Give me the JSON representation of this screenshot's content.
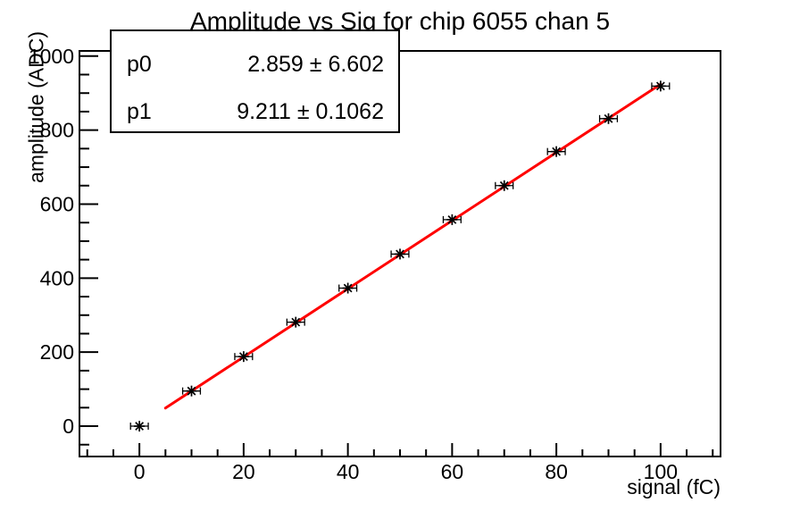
{
  "chart_data": {
    "type": "scatter",
    "title": "Amplitude vs Sig for chip 6055 chan 5",
    "xlabel": "signal (fC)",
    "ylabel": "amplitude (ADC)",
    "x": [
      0,
      10,
      20,
      30,
      40,
      50,
      60,
      70,
      80,
      90,
      100
    ],
    "y": [
      0,
      95,
      188,
      281,
      373,
      465,
      558,
      650,
      742,
      831,
      919
    ],
    "x_err": 1.7,
    "xlim": [
      -11.5,
      111.5
    ],
    "ylim": [
      -82,
      1014
    ],
    "x_major_ticks": [
      0,
      20,
      40,
      60,
      80,
      100
    ],
    "x_minor_step": 5,
    "y_major_ticks": [
      0,
      200,
      400,
      600,
      800,
      1000
    ],
    "y_minor_step": 50,
    "grid": false,
    "legend_position": "none",
    "marker": "asterisk",
    "marker_color": "#000000",
    "axis_color": "#000000",
    "fit": {
      "slope": 9.211,
      "intercept": 2.859,
      "line_range": [
        5,
        100
      ],
      "color": "#ff0000"
    }
  },
  "stats": {
    "rows": [
      {
        "label": "p0",
        "value": "2.859 ± 6.602"
      },
      {
        "label": "p1",
        "value": "9.211 ± 0.1062"
      }
    ]
  }
}
